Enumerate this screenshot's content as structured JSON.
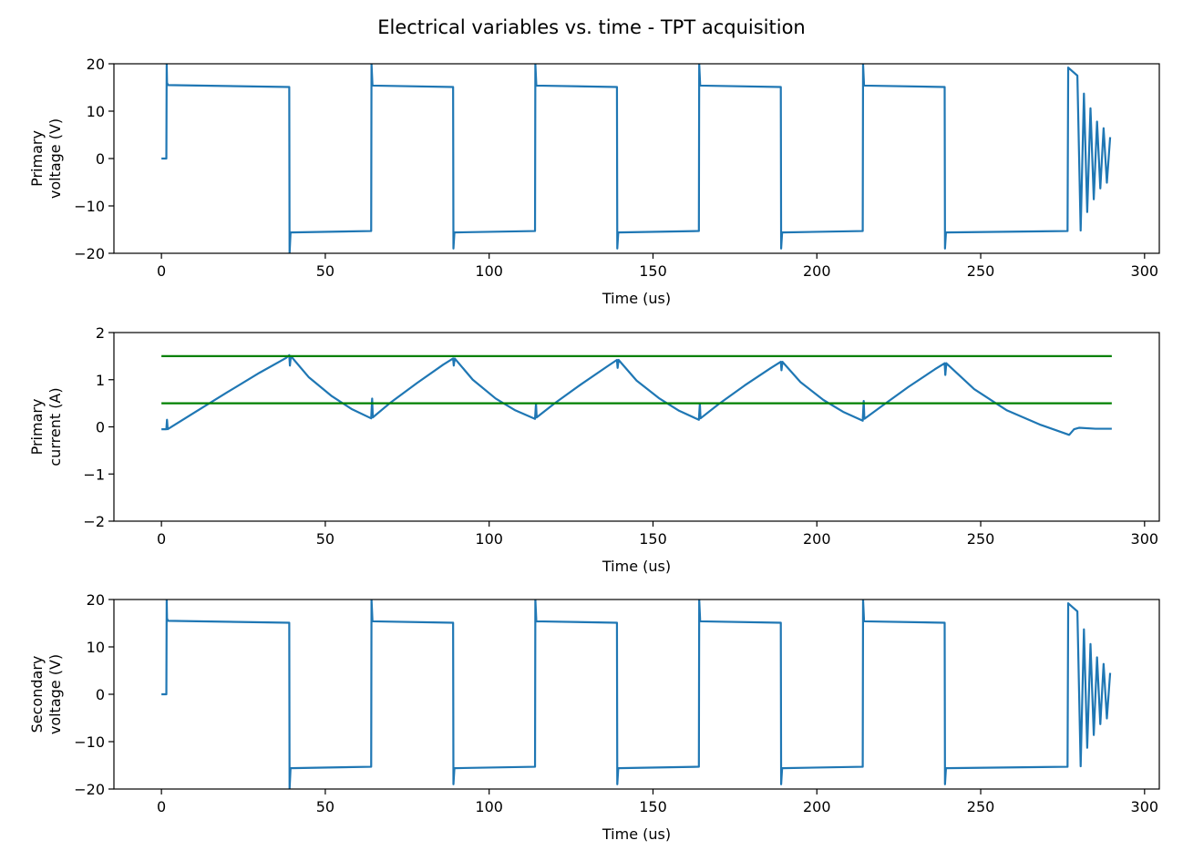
{
  "colors": {
    "signal": "#1f77b4",
    "threshold": "#008000",
    "axes": "#000000",
    "background": "#ffffff"
  },
  "chart_data": {
    "type": "line",
    "suptitle": "Electrical variables vs. time - TPT acquisition",
    "panels": [
      {
        "id": "primary-voltage",
        "ylabel": [
          "Primary",
          "voltage (V)"
        ],
        "xlabel": "Time (us)",
        "xlim": [
          -14.5,
          304.5
        ],
        "ylim": [
          -20,
          20
        ],
        "xticks": [
          0,
          50,
          100,
          150,
          200,
          250,
          300
        ],
        "yticks": [
          -20,
          -10,
          0,
          10,
          20
        ],
        "grid": false,
        "series": [
          {
            "color": "#1f77b4",
            "x": [
              0,
              1.5,
              1.6,
              1.7,
              2.0,
              39.0,
              39.1,
              39.4,
              64.0,
              64.1,
              64.4,
              89.0,
              89.1,
              89.4,
              114.0,
              114.1,
              114.4,
              139.0,
              139.1,
              139.4,
              164.0,
              164.1,
              164.4,
              189.0,
              189.1,
              189.4,
              214.0,
              214.1,
              214.4,
              239.0,
              239.1,
              239.4,
              276.5,
              276.7,
              278.0,
              279.5,
              280.5,
              281.5,
              282.5,
              283.5,
              284.5,
              285.5,
              286.5,
              287.5,
              288.5,
              289.5
            ],
            "y": [
              0,
              0,
              20,
              16,
              15.5,
              15.1,
              -20,
              -15.6,
              -15.3,
              20,
              15.4,
              15.1,
              -19,
              -15.6,
              -15.3,
              20,
              15.4,
              15.1,
              -19,
              -15.6,
              -15.3,
              20,
              15.4,
              15.1,
              -19,
              -15.6,
              -15.3,
              20,
              15.4,
              15.1,
              -19,
              -15.6,
              -15.3,
              19.2,
              18.4,
              17.5,
              -15.2,
              13.7,
              -11.3,
              10.6,
              -8.6,
              7.8,
              -6.3,
              6.4,
              -5.1,
              4.5
            ]
          }
        ]
      },
      {
        "id": "primary-current",
        "ylabel": [
          "Primary",
          "current (A)"
        ],
        "xlabel": "Time (us)",
        "xlim": [
          -14.5,
          304.5
        ],
        "ylim": [
          -2,
          2
        ],
        "xticks": [
          0,
          50,
          100,
          150,
          200,
          250,
          300
        ],
        "yticks": [
          -2,
          -1,
          0,
          1,
          2
        ],
        "grid": false,
        "series": [
          {
            "color": "#1f77b4",
            "x": [
              0,
              1.5,
              1.7,
              1.9,
              10,
              20,
              30,
              38,
              39,
              39.2,
              39.5,
              45,
              52,
              58,
              64,
              64.3,
              64.5,
              70,
              78,
              86,
              89,
              89.2,
              89.5,
              95,
              102,
              108,
              114,
              114.3,
              114.5,
              120,
              128,
              136,
              139,
              139.2,
              139.5,
              145,
              152,
              158,
              164,
              164.3,
              164.5,
              170,
              178,
              186,
              189,
              189.2,
              189.5,
              195,
              202,
              208,
              214,
              214.3,
              214.5,
              220,
              228,
              236,
              239,
              239.2,
              239.5,
              248,
              258,
              268,
              277,
              278.5,
              280,
              285,
              290
            ],
            "y": [
              -0.05,
              -0.05,
              0.15,
              -0.05,
              0.3,
              0.73,
              1.15,
              1.46,
              1.52,
              1.3,
              1.5,
              1.05,
              0.65,
              0.38,
              0.18,
              0.6,
              0.2,
              0.52,
              0.93,
              1.32,
              1.45,
              1.3,
              1.45,
              1.0,
              0.6,
              0.35,
              0.17,
              0.5,
              0.2,
              0.5,
              0.9,
              1.28,
              1.42,
              1.25,
              1.42,
              0.98,
              0.6,
              0.34,
              0.15,
              0.5,
              0.18,
              0.48,
              0.88,
              1.25,
              1.38,
              1.2,
              1.38,
              0.95,
              0.57,
              0.32,
              0.13,
              0.55,
              0.17,
              0.45,
              0.85,
              1.22,
              1.35,
              1.1,
              1.35,
              0.8,
              0.35,
              0.05,
              -0.17,
              -0.05,
              -0.02,
              -0.04,
              -0.04
            ]
          },
          {
            "color": "#008000",
            "x": [
              0,
              290
            ],
            "y": [
              1.5,
              1.5
            ]
          },
          {
            "color": "#008000",
            "x": [
              0,
              290
            ],
            "y": [
              0.5,
              0.5
            ]
          }
        ]
      },
      {
        "id": "secondary-voltage",
        "ylabel": [
          "Secondary",
          "voltage (V)"
        ],
        "xlabel": "Time (us)",
        "xlim": [
          -14.5,
          304.5
        ],
        "ylim": [
          -20,
          20
        ],
        "xticks": [
          0,
          50,
          100,
          150,
          200,
          250,
          300
        ],
        "yticks": [
          -20,
          -10,
          0,
          10,
          20
        ],
        "grid": false,
        "series": [
          {
            "color": "#1f77b4",
            "x": [
              0,
              1.5,
              1.6,
              1.7,
              2.0,
              39.0,
              39.1,
              39.4,
              64.0,
              64.1,
              64.4,
              89.0,
              89.1,
              89.4,
              114.0,
              114.1,
              114.4,
              139.0,
              139.1,
              139.4,
              164.0,
              164.1,
              164.4,
              189.0,
              189.1,
              189.4,
              214.0,
              214.1,
              214.4,
              239.0,
              239.1,
              239.4,
              276.5,
              276.7,
              278.0,
              279.5,
              280.5,
              281.5,
              282.5,
              283.5,
              284.5,
              285.5,
              286.5,
              287.5,
              288.5,
              289.5
            ],
            "y": [
              0,
              0,
              20,
              16,
              15.5,
              15.1,
              -20,
              -15.6,
              -15.3,
              20,
              15.4,
              15.1,
              -19,
              -15.6,
              -15.3,
              20,
              15.4,
              15.1,
              -19,
              -15.6,
              -15.3,
              20,
              15.4,
              15.1,
              -19,
              -15.6,
              -15.3,
              20,
              15.4,
              15.1,
              -19,
              -15.6,
              -15.3,
              19.2,
              18.4,
              17.5,
              -15.2,
              13.7,
              -11.3,
              10.6,
              -8.6,
              7.8,
              -6.3,
              6.4,
              -5.1,
              4.5
            ]
          }
        ]
      }
    ]
  }
}
